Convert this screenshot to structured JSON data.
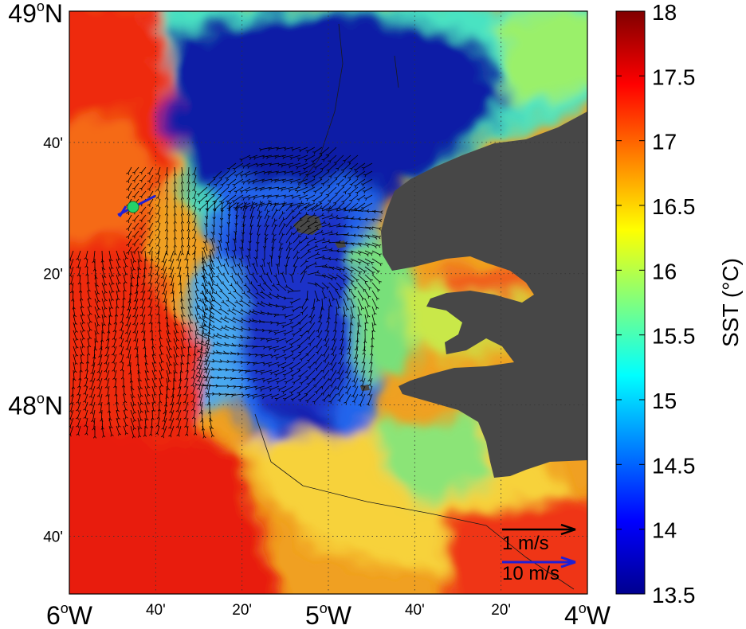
{
  "map": {
    "lat_ticks": [
      {
        "value": 49.0,
        "label": "49",
        "sup": "o",
        "suffix": "N",
        "major": true
      },
      {
        "value": 48.6667,
        "label": "40'",
        "major": false
      },
      {
        "value": 48.3333,
        "label": "20'",
        "major": false
      },
      {
        "value": 48.0,
        "label": "48",
        "sup": "o",
        "suffix": "N",
        "major": true
      },
      {
        "value": 47.6667,
        "label": "40'",
        "major": false
      }
    ],
    "lon_ticks": [
      {
        "value": -6.0,
        "label": "6",
        "sup": "o",
        "suffix": "W",
        "major": true
      },
      {
        "value": -5.6667,
        "label": "40'",
        "major": false
      },
      {
        "value": -5.3333,
        "label": "20'",
        "major": false
      },
      {
        "value": -5.0,
        "label": "5",
        "sup": "o",
        "suffix": "W",
        "major": true
      },
      {
        "value": -4.6667,
        "label": "40'",
        "major": false
      },
      {
        "value": -4.3333,
        "label": "20'",
        "major": false
      },
      {
        "value": -4.0,
        "label": "4",
        "sup": "o",
        "suffix": "W",
        "major": true
      }
    ],
    "extent": {
      "lon_min": -6.0,
      "lon_max": -4.0,
      "lat_min": 47.52,
      "lat_max": 49.0
    },
    "land_color": "#474747",
    "current_arrow_color": "#000000",
    "wind_arrow_color": "#1f1fd6",
    "marker_color": "#22d36a",
    "scale_current": "1 m/s",
    "scale_wind": "10 m/s"
  },
  "colorbar": {
    "label": "SST (°C)",
    "min": 13.5,
    "max": 18.0,
    "ticks": [
      "18",
      "17.5",
      "17",
      "16.5",
      "16",
      "15.5",
      "15",
      "14.5",
      "14",
      "13.5"
    ],
    "colormap": "jet"
  }
}
